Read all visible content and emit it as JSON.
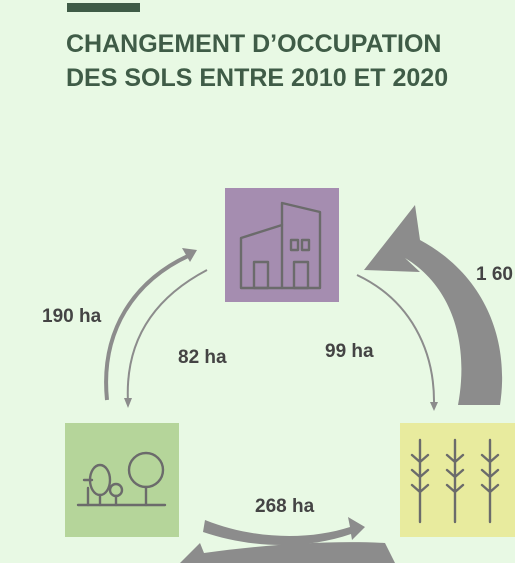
{
  "header": {
    "title_lines": [
      "CHANGEMENT D’OCCUPATION",
      "DES SOLS ENTRE 2010 ET 2020"
    ]
  },
  "flows": [
    {
      "label": "190 ha"
    },
    {
      "label": "82 ha"
    },
    {
      "label": "99 ha"
    },
    {
      "label": "268 ha"
    },
    {
      "label": "1 60"
    }
  ]
}
